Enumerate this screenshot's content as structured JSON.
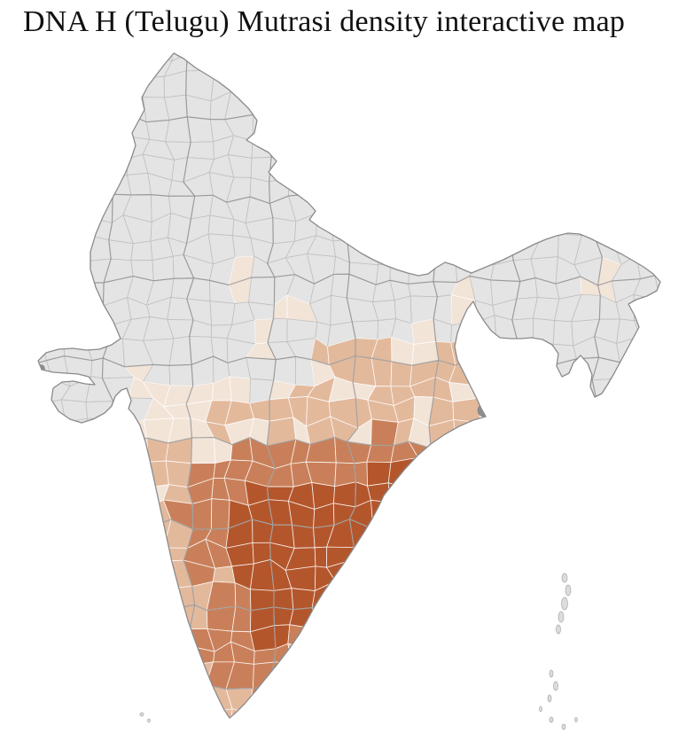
{
  "title": "DNA H (Telugu) Mutrasi density interactive map",
  "map": {
    "background": "#ffffff",
    "land_fill": "#e4e4e4",
    "district_border": "#bfbfbf",
    "district_border_colored": "rgba(255,255,255,0.85)",
    "state_border": "#949494",
    "country_border": "#8a8a8a",
    "island_fill": "#dcdcdc",
    "island_border": "#a8a8a8",
    "city_spot": "#8d8d8d",
    "density_scale": {
      "high": "#b4562c",
      "medium": "#c9805a",
      "low": "#e3b99c",
      "very_low": "#f3e4d8",
      "none": "#e4e4e4"
    }
  }
}
